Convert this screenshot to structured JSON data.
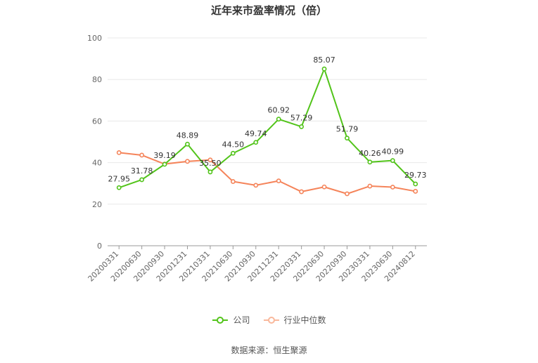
{
  "chart_data": {
    "type": "line",
    "title": "近年来市盈率情况（倍）",
    "categories": [
      "20200331",
      "20200630",
      "20200930",
      "20201231",
      "20210331",
      "20210630",
      "20210930",
      "20211231",
      "20220331",
      "20220630",
      "20220930",
      "20230331",
      "20230630",
      "20240812"
    ],
    "series": [
      {
        "name": "公司",
        "color": "#52c41a",
        "values": [
          27.95,
          31.78,
          39.19,
          48.89,
          35.5,
          44.5,
          49.74,
          60.92,
          57.29,
          85.07,
          51.79,
          40.26,
          40.99,
          29.73
        ],
        "labels": [
          "27.95",
          "31.78",
          "39.19",
          "48.89",
          "35.50",
          "44.50",
          "49.74",
          "60.92",
          "57.29",
          "85.07",
          "51.79",
          "40.26",
          "40.99",
          "29.73"
        ]
      },
      {
        "name": "行业中位数",
        "color": "#f5845a",
        "values": [
          44.8,
          43.6,
          39.3,
          40.6,
          41.3,
          30.9,
          29.1,
          31.2,
          26.0,
          28.3,
          25.0,
          28.7,
          28.2,
          26.2
        ]
      }
    ],
    "yticks": [
      "0",
      "20",
      "40",
      "60",
      "80",
      "100"
    ],
    "ylim": [
      0,
      100
    ],
    "grid": true,
    "legend_position": "bottom",
    "source": "数据来源：恒生聚源"
  }
}
